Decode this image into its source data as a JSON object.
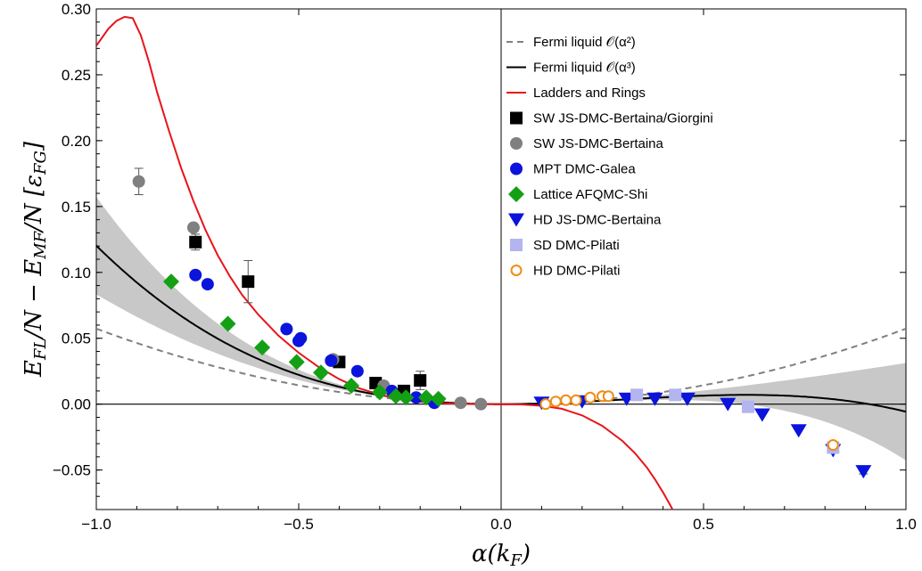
{
  "chart_data": {
    "type": "scatter",
    "xlabel": "α(k_F)",
    "ylabel": "E_FL/N − E_MF/N   [ε_FG]",
    "xlim": [
      -1.0,
      1.0
    ],
    "ylim": [
      -0.08,
      0.3
    ],
    "x_ticks": [
      "−1.0",
      "−0.5",
      "0.0",
      "0.5",
      "1.0"
    ],
    "x_tick_values": [
      -1.0,
      -0.5,
      0.0,
      0.5,
      1.0
    ],
    "y_ticks": [
      "0.30",
      "0.25",
      "0.20",
      "0.15",
      "0.10",
      "0.05",
      "0.00",
      "−0.05"
    ],
    "y_tick_values": [
      0.3,
      0.25,
      0.2,
      0.15,
      0.1,
      0.05,
      0.0,
      -0.05
    ],
    "legend_position": "upper-right",
    "curves": [
      {
        "name": "Fermi liquid  𝒪(α²)",
        "style": "dashed",
        "color": "#808080",
        "formula": "0.0573*a^2"
      },
      {
        "name": "Fermi liquid  𝒪(α³)",
        "style": "solid",
        "color": "#000000",
        "formula": "0.0573*a^2*(1-1.1*a)"
      },
      {
        "name": "Ladders and Rings",
        "style": "solid",
        "color": "#e8141a",
        "x": [
          -1.0,
          -0.97,
          -0.95,
          -0.93,
          -0.91,
          -0.89,
          -0.87,
          -0.85,
          -0.82,
          -0.79,
          -0.76,
          -0.73,
          -0.7,
          -0.67,
          -0.64,
          -0.6,
          -0.55,
          -0.5,
          -0.45,
          -0.4,
          -0.35,
          -0.3,
          -0.25,
          -0.2,
          -0.15,
          -0.1,
          -0.05,
          0.0,
          0.05,
          0.1,
          0.15,
          0.2,
          0.25,
          0.3,
          0.33,
          0.36,
          0.38,
          0.4,
          0.42,
          0.44
        ],
        "y": [
          0.272,
          0.285,
          0.291,
          0.294,
          0.293,
          0.28,
          0.26,
          0.237,
          0.207,
          0.179,
          0.154,
          0.132,
          0.113,
          0.097,
          0.083,
          0.068,
          0.052,
          0.039,
          0.028,
          0.019,
          0.012,
          0.0072,
          0.0039,
          0.0018,
          0.0007,
          0.0002,
          0.0,
          0.0,
          -0.0002,
          -0.0012,
          -0.0035,
          -0.0085,
          -0.0165,
          -0.028,
          -0.037,
          -0.048,
          -0.057,
          -0.067,
          -0.078,
          -0.09
        ]
      },
      {
        "name": "band",
        "style": "fill",
        "color": "#c8c8c8",
        "formula": "0.0573*a^2*(1-1.1*a) ± (0.025*|a|^3 + 0.012*a^4)"
      }
    ],
    "series": [
      {
        "name": "SW JS-DMC-Bertaina/Giorgini",
        "marker": "square",
        "color": "#000000",
        "points": [
          [
            -0.755,
            0.123,
            0.006
          ],
          [
            -0.625,
            0.093,
            0.016
          ],
          [
            -0.4,
            0.032,
            0
          ],
          [
            -0.31,
            0.016,
            0
          ],
          [
            -0.24,
            0.01,
            0
          ],
          [
            -0.2,
            0.018,
            0.007
          ]
        ]
      },
      {
        "name": "SW JS-DMC-Bertaina",
        "marker": "circle",
        "color": "#808080",
        "points": [
          [
            -0.895,
            0.169,
            0.01
          ],
          [
            -0.76,
            0.134,
            0
          ],
          [
            -0.415,
            0.034,
            0
          ],
          [
            -0.29,
            0.014,
            0
          ],
          [
            -0.1,
            0.001,
            0
          ],
          [
            -0.05,
            0.0,
            0
          ]
        ]
      },
      {
        "name": "MPT DMC-Galea",
        "marker": "circle",
        "color": "#0a14dc",
        "points": [
          [
            -0.755,
            0.098,
            0
          ],
          [
            -0.725,
            0.091,
            0
          ],
          [
            -0.53,
            0.057,
            0
          ],
          [
            -0.495,
            0.05,
            0
          ],
          [
            -0.5,
            0.048,
            0
          ],
          [
            -0.42,
            0.033,
            0
          ],
          [
            -0.355,
            0.025,
            0
          ],
          [
            -0.27,
            0.01,
            0
          ],
          [
            -0.21,
            0.005,
            0
          ],
          [
            -0.165,
            0.001,
            0
          ]
        ]
      },
      {
        "name": "Lattice AFQMC-Shi",
        "marker": "diamond",
        "color": "#14a014",
        "points": [
          [
            -0.815,
            0.093,
            0
          ],
          [
            -0.675,
            0.061,
            0
          ],
          [
            -0.59,
            0.043,
            0
          ],
          [
            -0.505,
            0.032,
            0
          ],
          [
            -0.445,
            0.024,
            0
          ],
          [
            -0.37,
            0.014,
            0
          ],
          [
            -0.3,
            0.009,
            0
          ],
          [
            -0.26,
            0.006,
            0
          ],
          [
            -0.235,
            0.005,
            0
          ],
          [
            -0.185,
            0.005,
            0
          ],
          [
            -0.155,
            0.004,
            0
          ]
        ]
      },
      {
        "name": "HD JS-DMC-Bertaina",
        "marker": "triangle-down",
        "color": "#0a14dc",
        "points": [
          [
            0.1,
            0.001,
            0
          ],
          [
            0.2,
            0.002,
            0
          ],
          [
            0.31,
            0.004,
            0
          ],
          [
            0.38,
            0.004,
            0
          ],
          [
            0.46,
            0.004,
            0
          ],
          [
            0.56,
            0.0,
            0
          ],
          [
            0.645,
            -0.008,
            0
          ],
          [
            0.735,
            -0.02,
            0
          ],
          [
            0.82,
            -0.035,
            0.002
          ],
          [
            0.895,
            -0.051,
            0.002
          ]
        ]
      },
      {
        "name": "SD DMC-Pilati",
        "marker": "square",
        "color": "#b4b4f0",
        "points": [
          [
            0.335,
            0.007,
            0
          ],
          [
            0.43,
            0.007,
            0
          ],
          [
            0.61,
            -0.002,
            0
          ],
          [
            0.82,
            -0.033,
            0
          ]
        ]
      },
      {
        "name": "HD DMC-Pilati",
        "marker": "circle-open",
        "color": "#f08c14",
        "points": [
          [
            0.11,
            0.0,
            0
          ],
          [
            0.135,
            0.002,
            0
          ],
          [
            0.16,
            0.003,
            0
          ],
          [
            0.185,
            0.003,
            0
          ],
          [
            0.22,
            0.005,
            0
          ],
          [
            0.25,
            0.006,
            0
          ],
          [
            0.265,
            0.006,
            0
          ],
          [
            0.82,
            -0.031,
            0
          ]
        ]
      }
    ]
  }
}
